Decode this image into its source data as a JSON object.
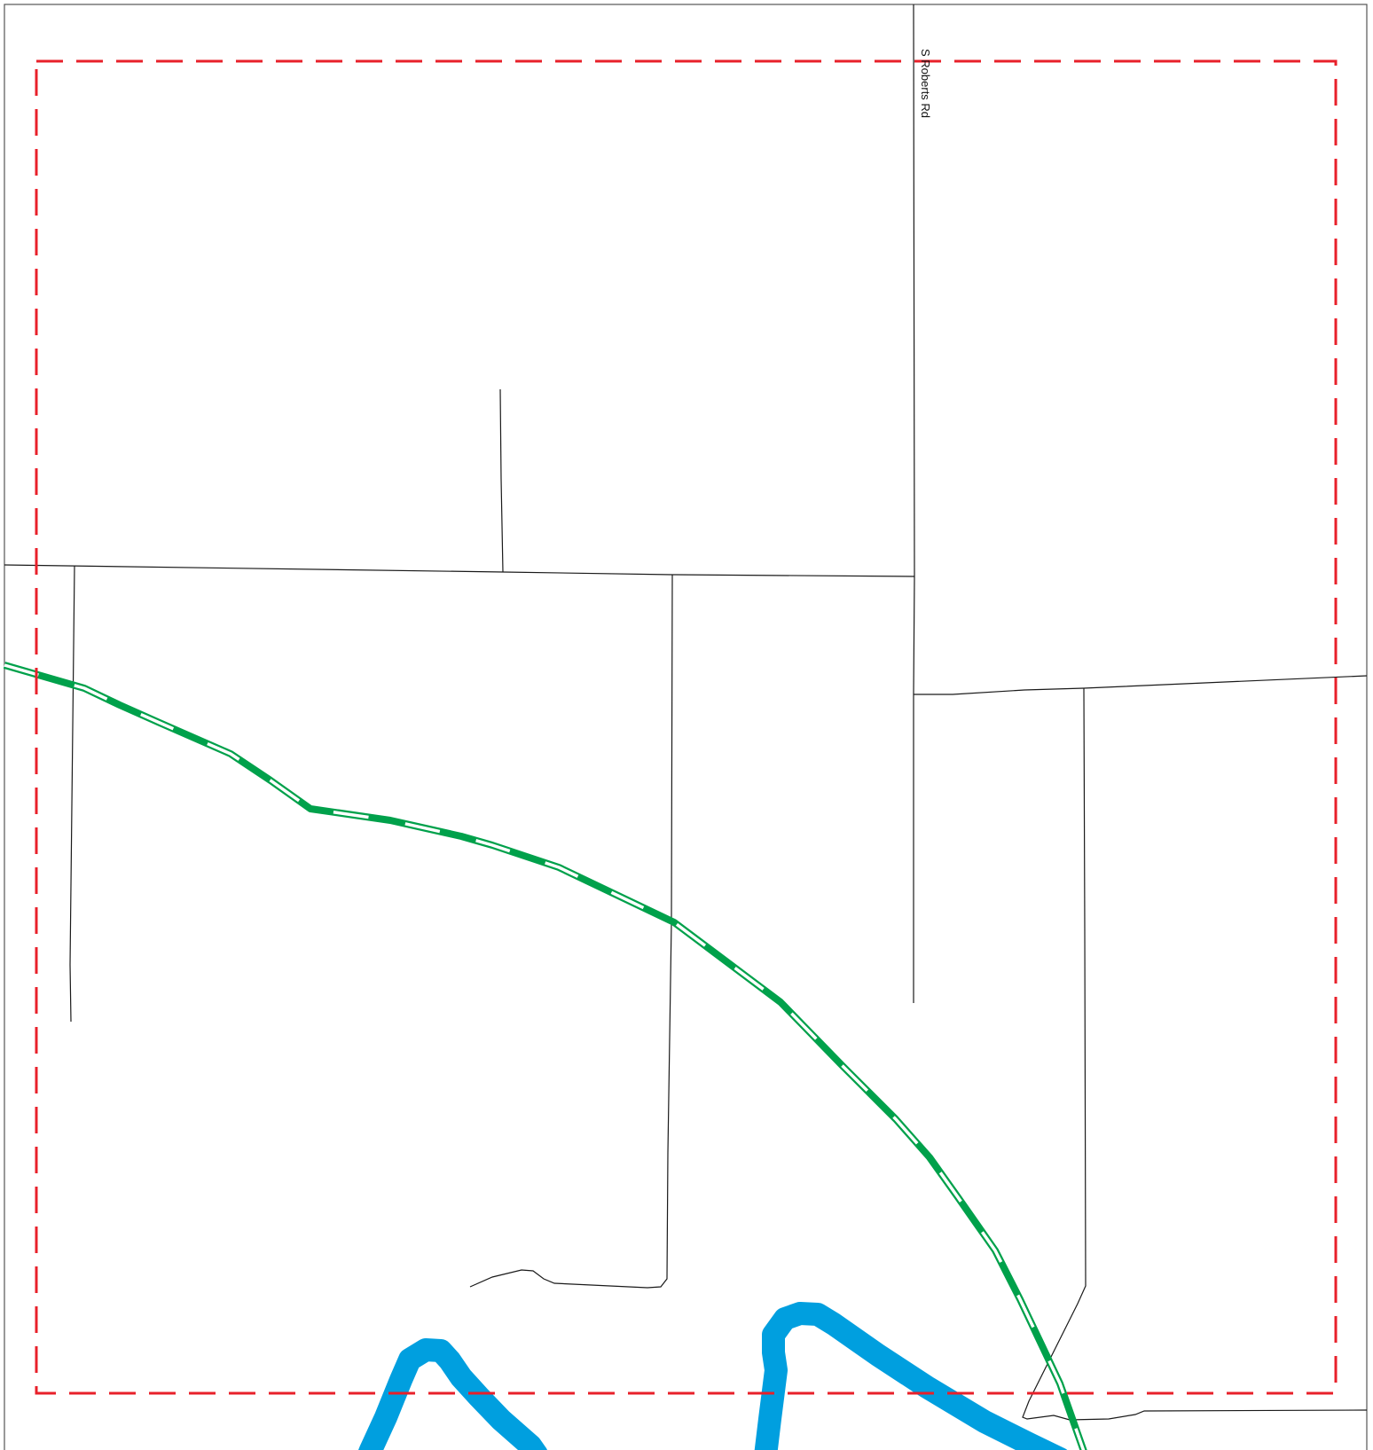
{
  "map": {
    "labels": {
      "road_s_roberts": "S Roberts Rd"
    },
    "colors": {
      "background": "#ffffff",
      "frame": "#555555",
      "road": "#1a1a1a",
      "trail_dark": "#00a14b",
      "trail_light": "#ffffff",
      "water": "#009fdf",
      "boundary": "#e8202a"
    },
    "legend_semantics": {
      "boundary": "dashed-red-rectangle",
      "trail": "green-white-striped-line",
      "water": "blue-river-band",
      "roads": "thin-black-lines"
    }
  }
}
